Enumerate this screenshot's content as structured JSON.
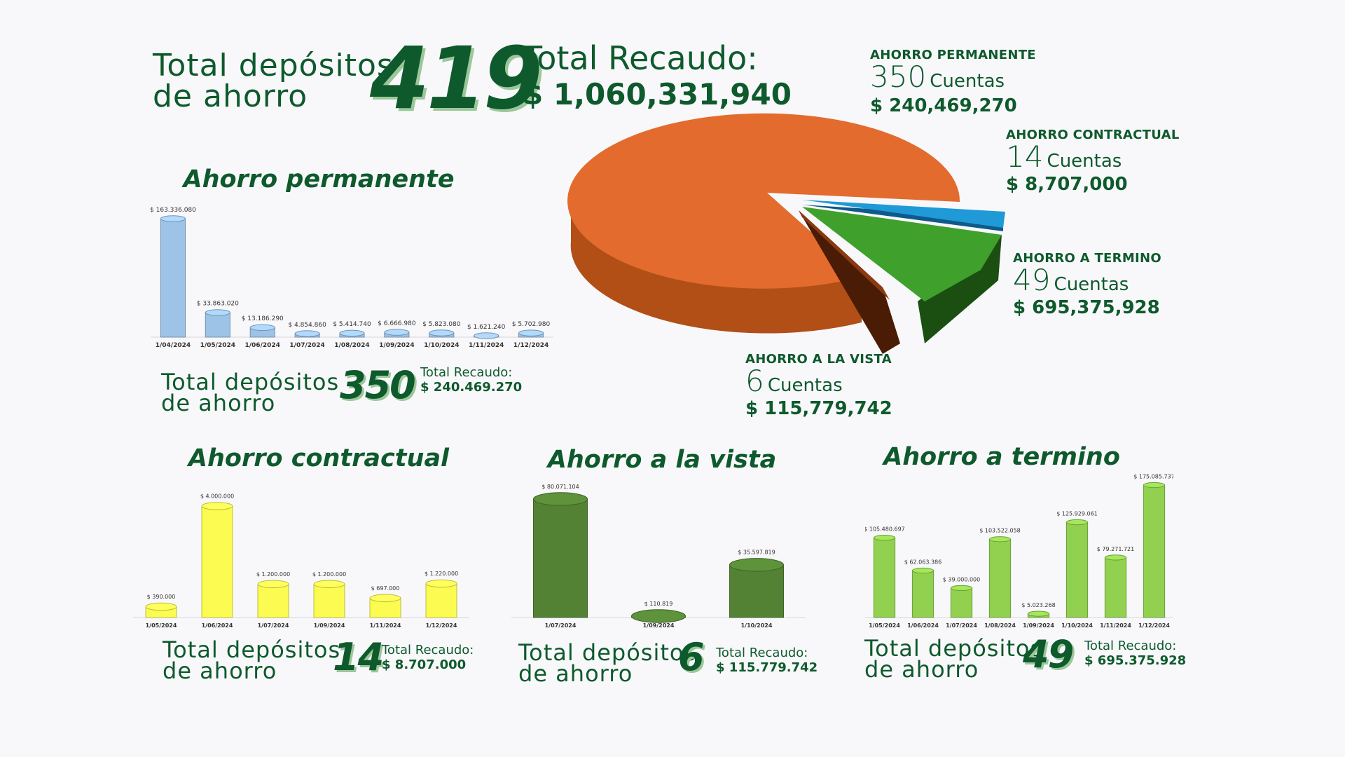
{
  "header": {
    "total_label_line1": "Total  depósitos",
    "total_label_line2": "de ahorro",
    "total_count": "419",
    "recaudo_label": "Total Recaudo:",
    "recaudo_value": "$ 1,060,331,940"
  },
  "pie": {
    "labels": [
      {
        "head": "AHORRO PERMANENTE",
        "count": "350",
        "count_word": "Cuentas",
        "money": "$ 240,469,270"
      },
      {
        "head": "AHORRO CONTRACTUAL",
        "count": "14",
        "count_word": "Cuentas",
        "money": "$ 8,707,000"
      },
      {
        "head": "AHORRO A TERMINO",
        "count": "49",
        "count_word": "Cuentas",
        "money": "$ 695,375,928"
      },
      {
        "head": "AHORRO A LA VISTA",
        "count": "6",
        "count_word": "Cuentas",
        "money": "$ 115,779,742"
      }
    ],
    "colors": {
      "orange": "#e26b2d",
      "blue": "#1f9ad6",
      "green": "#3fa02c",
      "brown": "#8b3a10"
    }
  },
  "sections": {
    "permanente": {
      "title": "Ahorro permanente",
      "total_line1": "Total  depósitos",
      "total_line2": "de ahorro",
      "count": "350",
      "recaudo_label": "Total Recaudo:",
      "recaudo_value": "$ 240.469.270"
    },
    "contractual": {
      "title": "Ahorro contractual",
      "total_line1": "Total  depósitos",
      "total_line2": "de ahorro",
      "count": "14",
      "recaudo_label": "Total Recaudo:",
      "recaudo_value": "$ 8.707.000"
    },
    "vista": {
      "title": "Ahorro a la vista",
      "total_line1": "Total  depósitos",
      "total_line2": "de ahorro",
      "count": "6",
      "recaudo_label": "Total Recaudo:",
      "recaudo_value": "$ 115.779.742"
    },
    "termino": {
      "title": "Ahorro a termino",
      "total_line1": "Total  depósitos",
      "total_line2": "de ahorro",
      "count": "49",
      "recaudo_label": "Total Recaudo:",
      "recaudo_value": "$ 695.375.928"
    }
  },
  "chart_data": [
    {
      "type": "pie",
      "title": "",
      "categories": [
        "AHORRO PERMANENTE",
        "AHORRO CONTRACTUAL",
        "AHORRO A TERMINO",
        "AHORRO A LA VISTA"
      ],
      "values": [
        350,
        14,
        49,
        6
      ],
      "colors": [
        "#e26b2d",
        "#1f9ad6",
        "#3fa02c",
        "#8b3a10"
      ]
    },
    {
      "type": "bar",
      "title": "Ahorro permanente",
      "categories": [
        "1/04/2024",
        "1/05/2024",
        "1/06/2024",
        "1/07/2024",
        "1/08/2024",
        "1/09/2024",
        "1/10/2024",
        "1/11/2024",
        "1/12/2024"
      ],
      "values": [
        163336080,
        33863020,
        13186290,
        4854860,
        5414740,
        6666980,
        5823080,
        1621240,
        5702980
      ],
      "labels": [
        "$ 163.336.080",
        "$ 33.863.020",
        "$ 13.186.290",
        "$ 4.854.860",
        "$ 5.414.740",
        "$ 6.666.980",
        "$ 5.823.080",
        "$ 1.621.240",
        "$ 5.702.980"
      ],
      "color": "#9dc3e6"
    },
    {
      "type": "bar",
      "title": "Ahorro contractual",
      "categories": [
        "1/05/2024",
        "1/06/2024",
        "1/07/2024",
        "1/09/2024",
        "1/11/2024",
        "1/12/2024"
      ],
      "values": [
        390000,
        4000000,
        1200000,
        1200000,
        697000,
        1220000
      ],
      "labels": [
        "$ 390.000",
        "$ 4.000.000",
        "$ 1.200.000",
        "$ 1.200.000",
        "$ 697.000",
        "$ 1.220.000"
      ],
      "color": "#fbfb52"
    },
    {
      "type": "bar",
      "title": "Ahorro a la vista",
      "categories": [
        "1/07/2024",
        "1/09/2024",
        "1/10/2024"
      ],
      "values": [
        80071104,
        110819,
        35597819
      ],
      "labels": [
        "$ 80.071.104",
        "$ 110.819",
        "$ 35.597.819"
      ],
      "color": "#548235"
    },
    {
      "type": "bar",
      "title": "Ahorro a termino",
      "categories": [
        "1/05/2024",
        "1/06/2024",
        "1/07/2024",
        "1/08/2024",
        "1/09/2024",
        "1/10/2024",
        "1/11/2024",
        "1/12/2024"
      ],
      "values": [
        105480697,
        62063386,
        39000000,
        103522058,
        5023268,
        125929061,
        79271721,
        175085737
      ],
      "labels": [
        "$ 105.480.697",
        "$ 62.063.386",
        "$ 39.000.000",
        "$ 103.522.058",
        "$ 5.023.268",
        "$ 125.929.061",
        "$ 79.271.721",
        "$ 175.085.737"
      ],
      "color": "#92d050"
    }
  ]
}
